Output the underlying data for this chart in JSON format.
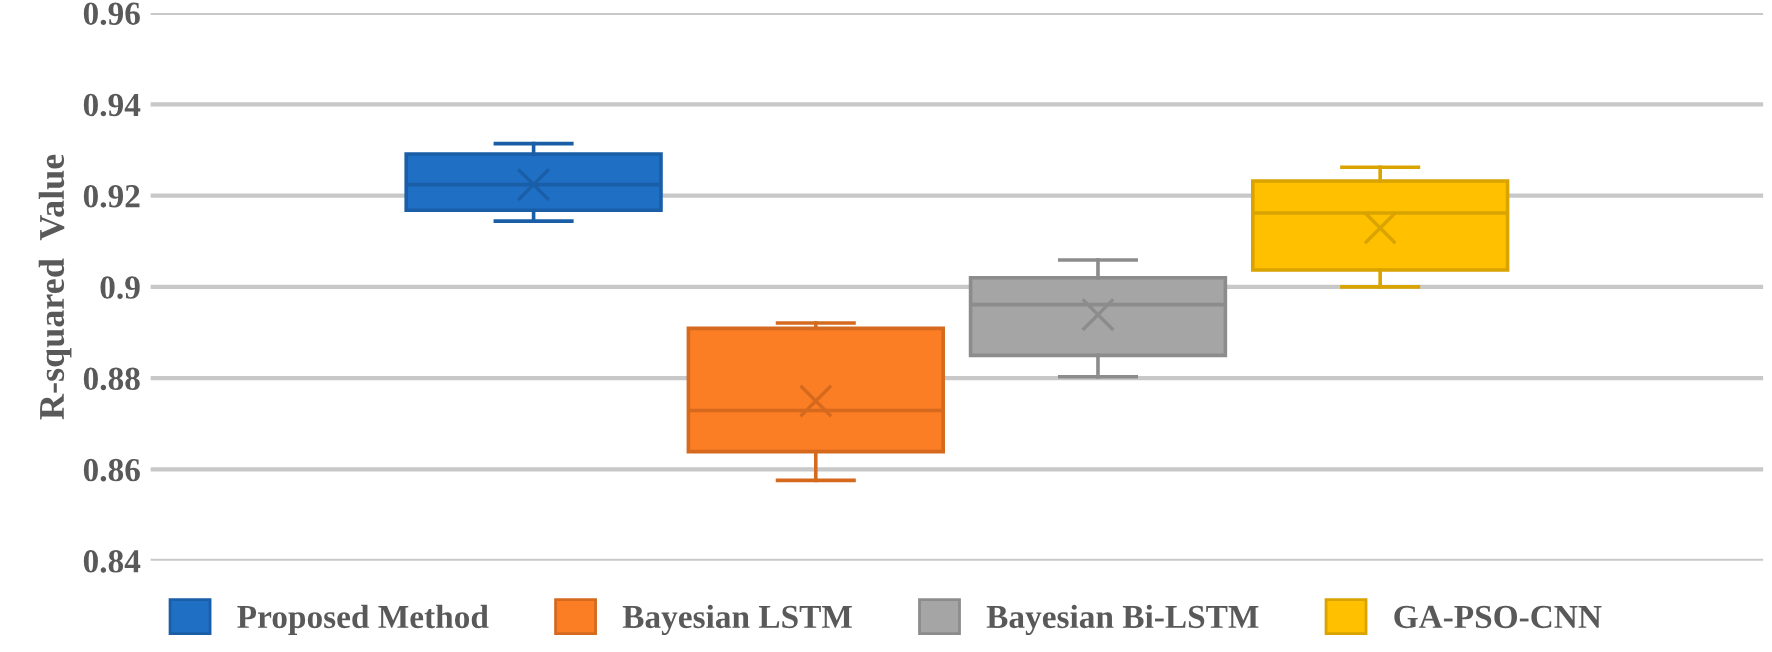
{
  "chart_data": {
    "type": "box",
    "ylabel": "R-squared  Value",
    "categories": [
      null
    ],
    "series": [
      {
        "name": "Proposed Method",
        "color": "#1f6fc5",
        "boxes": [
          {
            "low": 0.9144,
            "q1": 0.9168,
            "median": 0.9224,
            "q3": 0.9291,
            "high": 0.9314,
            "mean": 0.9224
          }
        ]
      },
      {
        "name": "Bayesian LSTM",
        "color": "#fb7d24",
        "boxes": [
          {
            "low": 0.8576,
            "q1": 0.8639,
            "median": 0.8729,
            "q3": 0.8909,
            "high": 0.8921,
            "mean": 0.875
          }
        ]
      },
      {
        "name": "Bayesian Bi-LSTM",
        "color": "#a5a5a5",
        "boxes": [
          {
            "low": 0.8803,
            "q1": 0.885,
            "median": 0.8961,
            "q3": 0.902,
            "high": 0.9059,
            "mean": 0.8939
          }
        ]
      },
      {
        "name": "GA-PSO-CNN",
        "color": "#ffc000",
        "boxes": [
          {
            "low": 0.9,
            "q1": 0.9037,
            "median": 0.9162,
            "q3": 0.9232,
            "high": 0.9262,
            "mean": 0.9129
          }
        ]
      }
    ],
    "ylim": [
      0.84,
      0.96
    ],
    "yticks": [
      0.84,
      0.86,
      0.88,
      0.9,
      0.92,
      0.94,
      0.96
    ],
    "grid": "y",
    "legend": "bottom",
    "marker": "cross"
  }
}
